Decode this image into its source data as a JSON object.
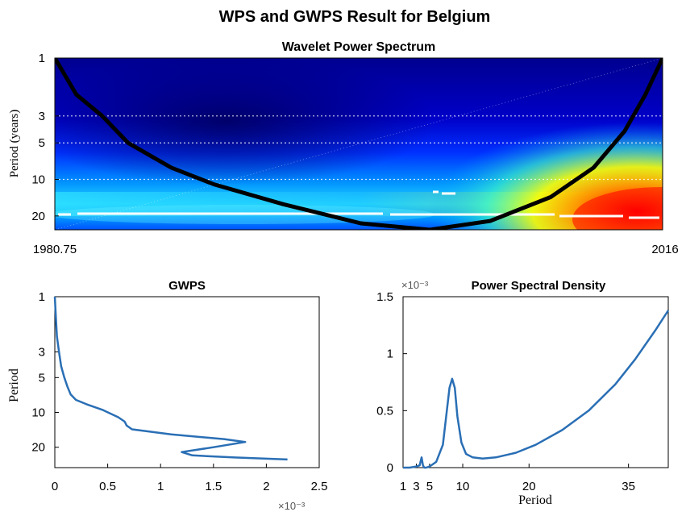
{
  "figure": {
    "title": "WPS and GWPS Result for Belgium"
  },
  "chart_data": [
    {
      "id": "wps",
      "type": "heatmap",
      "title": "Wavelet Power Spectrum",
      "xlabel": "",
      "ylabel": "Period (years)",
      "x_tick_labels": [
        "1980.75",
        "2016"
      ],
      "xlim": [
        1980.75,
        2016
      ],
      "y_scale": "log",
      "y_ticks": [
        1,
        3,
        5,
        10,
        20
      ],
      "ylim": [
        1,
        26
      ],
      "y_reversed": true,
      "grid": "dotted horizontal at 3, 5, 10 years",
      "colormap": [
        "#00008f",
        "#0000ff",
        "#00a0ff",
        "#00ffff",
        "#80ff80",
        "#ffff00",
        "#ff8000",
        "#ff0000",
        "#800000"
      ],
      "cone_of_influence": [
        {
          "x": 1980.75,
          "y": 1
        },
        {
          "x": 1982.0,
          "y": 2
        },
        {
          "x": 1983.5,
          "y": 3
        },
        {
          "x": 1985.0,
          "y": 5
        },
        {
          "x": 1987.5,
          "y": 8
        },
        {
          "x": 1990.0,
          "y": 11
        },
        {
          "x": 1994.0,
          "y": 16
        },
        {
          "x": 1998.5,
          "y": 23
        },
        {
          "x": 2002.5,
          "y": 26
        },
        {
          "x": 2006.0,
          "y": 22
        },
        {
          "x": 2009.5,
          "y": 14
        },
        {
          "x": 2012.0,
          "y": 8
        },
        {
          "x": 2013.8,
          "y": 4
        },
        {
          "x": 2015.0,
          "y": 2
        },
        {
          "x": 2016.0,
          "y": 1
        }
      ]
    },
    {
      "id": "gwps",
      "type": "line",
      "title": "GWPS",
      "ylabel": "Period",
      "xlabel": "",
      "x_ticks": [
        0,
        0.5,
        1,
        1.5,
        2,
        2.5
      ],
      "x_tick_labels": [
        "0",
        "0.5",
        "1",
        "1.5",
        "2",
        "2.5"
      ],
      "x_multiplier": "×10⁻³",
      "xlim": [
        0,
        2.5
      ],
      "y_scale": "log",
      "y_ticks": [
        1,
        3,
        5,
        10,
        20
      ],
      "ylim": [
        1,
        30
      ],
      "y_reversed": true,
      "color": "#2a6fb5",
      "series": [
        {
          "x": [
            0.0,
            0.01,
            0.02,
            0.04,
            0.06,
            0.09,
            0.12,
            0.15,
            0.2,
            0.3,
            0.45,
            0.6,
            0.66,
            0.68,
            0.73,
            1.1,
            1.6,
            1.8,
            1.5,
            1.2,
            1.3,
            1.7,
            2.2
          ],
          "y": [
            1.0,
            1.5,
            2.2,
            3.0,
            4.0,
            5.0,
            6.0,
            7.0,
            7.8,
            8.5,
            9.5,
            11.0,
            12.0,
            13.0,
            14.0,
            15.5,
            17.0,
            18.0,
            20.0,
            22.0,
            23.5,
            24.5,
            25.5
          ]
        }
      ]
    },
    {
      "id": "psd",
      "type": "line",
      "title": "Power Spectral Density",
      "xlabel": "Period",
      "ylabel": "",
      "x_ticks": [
        1,
        3,
        5,
        10,
        20,
        35
      ],
      "xlim": [
        1,
        41
      ],
      "y_ticks": [
        0,
        0.5,
        1,
        1.5
      ],
      "y_multiplier": "×10⁻³",
      "ylim": [
        0,
        1.5
      ],
      "color": "#2a6fb5",
      "series": [
        {
          "x": [
            1,
            2,
            3,
            3.5,
            3.8,
            4,
            4.2,
            4.5,
            5,
            6,
            7,
            7.5,
            8,
            8.4,
            8.8,
            9.2,
            9.8,
            10.5,
            11.5,
            13,
            15,
            18,
            21,
            25,
            29,
            33,
            36,
            39,
            41
          ],
          "y": [
            0.0,
            0.0,
            0.01,
            0.02,
            0.09,
            0.02,
            0.0,
            0.0,
            0.01,
            0.05,
            0.2,
            0.45,
            0.7,
            0.78,
            0.7,
            0.45,
            0.22,
            0.12,
            0.09,
            0.08,
            0.09,
            0.13,
            0.2,
            0.33,
            0.5,
            0.73,
            0.95,
            1.2,
            1.38
          ]
        }
      ]
    }
  ]
}
